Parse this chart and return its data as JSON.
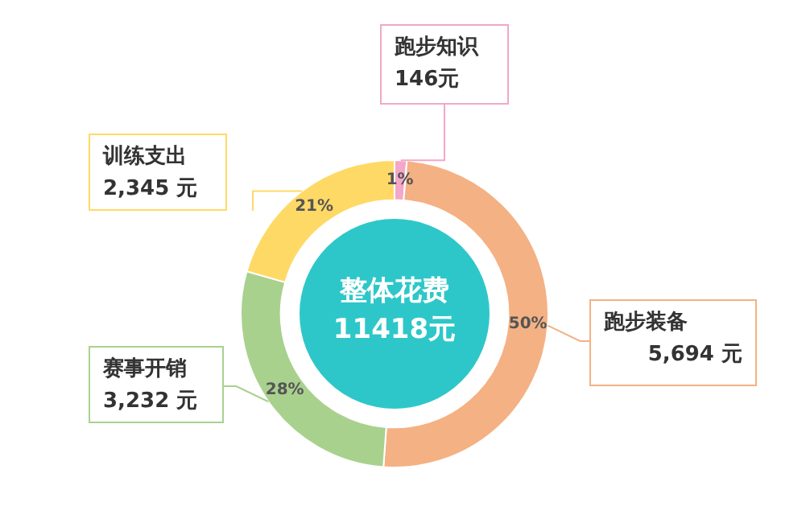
{
  "chart_data": {
    "type": "donut",
    "title": "整体花费",
    "subtitle": "11418元",
    "categories": [
      "跑步知识",
      "跑步装备",
      "赛事开销",
      "训练支出"
    ],
    "values": [
      146,
      5694,
      3232,
      2345
    ],
    "colors": [
      "#f4a7c8",
      "#f4b183",
      "#a9d18e",
      "#ffd966"
    ],
    "value_labels": [
      "146元",
      "5,694 元",
      "3,232 元",
      "2,345 元"
    ],
    "annotations": [
      {
        "text": "1%",
        "x": "跑步知识"
      },
      {
        "text": "50%",
        "x": "跑步装备"
      },
      {
        "text": "28%",
        "x": "赛事开销"
      },
      {
        "text": "21%",
        "x": "训练支出"
      }
    ],
    "legend": false
  }
}
